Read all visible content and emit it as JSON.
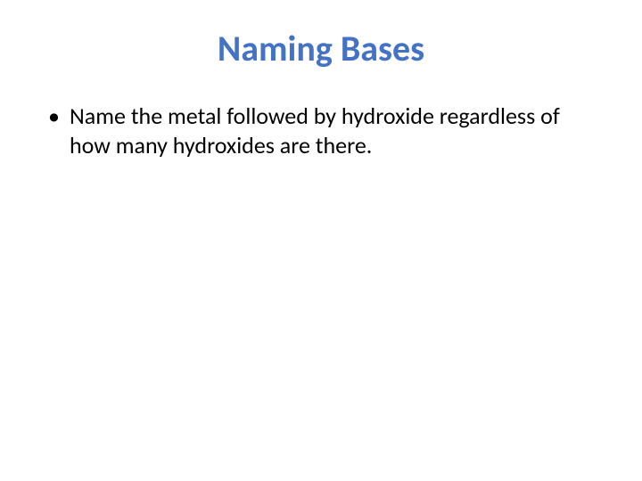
{
  "slide": {
    "title": "Naming Bases",
    "title_color": "#4472c4",
    "title_fontsize": 40,
    "bullets": [
      {
        "text": "Name the metal followed by hydroxide regardless of how many hydroxides are there."
      }
    ],
    "body_color": "#000000",
    "body_fontsize": 26,
    "background_color": "#ffffff"
  }
}
